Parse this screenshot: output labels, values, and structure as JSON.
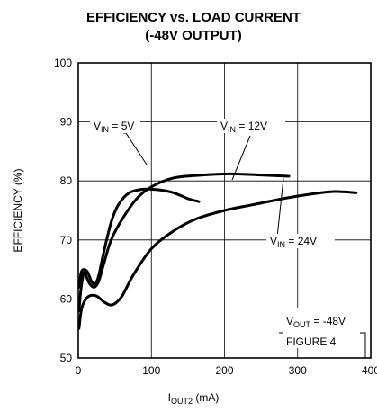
{
  "chart_data": {
    "type": "line",
    "title": "EFFICIENCY vs. LOAD CURRENT",
    "subtitle": "(-48V OUTPUT)",
    "xlabel": "I",
    "xlabel_sub": "OUT2",
    "xlabel_unit": " (mA)",
    "ylabel": "EFFICIENCY (%)",
    "xlim": [
      0,
      400
    ],
    "ylim": [
      50,
      100
    ],
    "xticks": [
      0,
      100,
      200,
      300,
      400
    ],
    "yticks": [
      50,
      60,
      70,
      80,
      90,
      100
    ],
    "grid": true,
    "series": [
      {
        "id": "vin5",
        "label_prefix": "V",
        "label_sub": "IN",
        "label_suffix": " = 5V",
        "points": [
          [
            1,
            62
          ],
          [
            4,
            64.5
          ],
          [
            8,
            65
          ],
          [
            13,
            64.5
          ],
          [
            18,
            63
          ],
          [
            23,
            62.5
          ],
          [
            28,
            64
          ],
          [
            35,
            68
          ],
          [
            45,
            73
          ],
          [
            55,
            76
          ],
          [
            70,
            78
          ],
          [
            90,
            78.6
          ],
          [
            110,
            78.5
          ],
          [
            130,
            78
          ],
          [
            150,
            77
          ],
          [
            165,
            76.5
          ]
        ]
      },
      {
        "id": "vin12",
        "label_prefix": "V",
        "label_sub": "IN",
        "label_suffix": " = 12V",
        "points": [
          [
            1,
            58
          ],
          [
            4,
            62
          ],
          [
            8,
            64.5
          ],
          [
            12,
            63.5
          ],
          [
            16,
            62.5
          ],
          [
            22,
            62
          ],
          [
            28,
            63
          ],
          [
            35,
            66
          ],
          [
            45,
            70
          ],
          [
            60,
            73.5
          ],
          [
            80,
            77
          ],
          [
            100,
            79
          ],
          [
            130,
            80.5
          ],
          [
            170,
            81
          ],
          [
            210,
            81.2
          ],
          [
            250,
            81
          ],
          [
            288,
            80.8
          ]
        ]
      },
      {
        "id": "vin24",
        "label_prefix": "V",
        "label_sub": "IN",
        "label_suffix": " = 24V",
        "points": [
          [
            1,
            55
          ],
          [
            4,
            58
          ],
          [
            8,
            59.5
          ],
          [
            15,
            60.5
          ],
          [
            25,
            60.5
          ],
          [
            35,
            59.5
          ],
          [
            43,
            59
          ],
          [
            50,
            59.2
          ],
          [
            60,
            60.5
          ],
          [
            75,
            64
          ],
          [
            100,
            68.5
          ],
          [
            130,
            71.5
          ],
          [
            160,
            73.5
          ],
          [
            200,
            75
          ],
          [
            240,
            76
          ],
          [
            280,
            77
          ],
          [
            320,
            77.8
          ],
          [
            350,
            78.2
          ],
          [
            380,
            78
          ]
        ]
      }
    ],
    "annotations": {
      "vout_prefix": "V",
      "vout_sub": "OUT",
      "vout_suffix": " = -48V",
      "figure": "FIGURE 4"
    }
  }
}
